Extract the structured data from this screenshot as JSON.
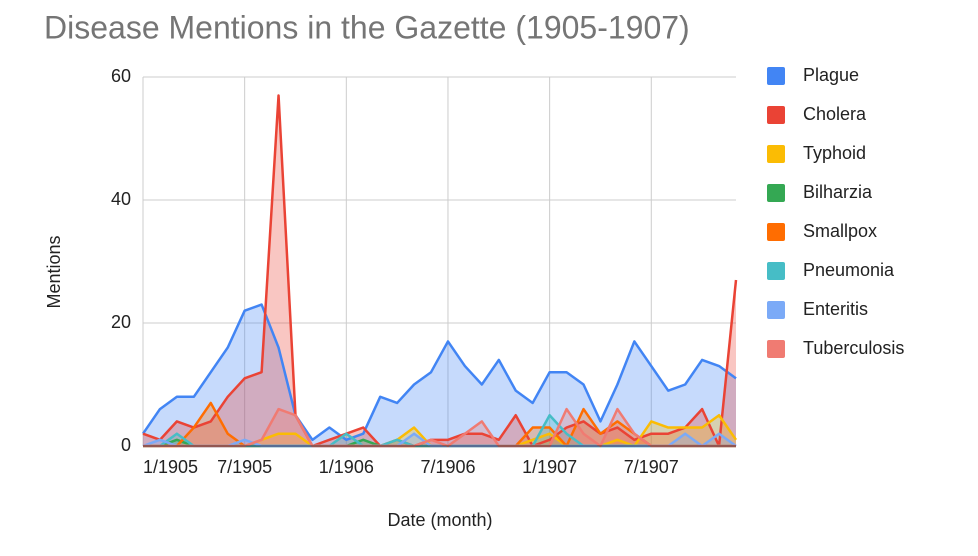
{
  "chart_data": {
    "type": "area",
    "title": "Disease Mentions in the Gazette (1905-1907)",
    "x_label": "Date (month)",
    "y_label": "Mentions",
    "categories": [
      "1/1905",
      null,
      null,
      null,
      null,
      null,
      "7/1905",
      null,
      null,
      null,
      null,
      null,
      "1/1906",
      null,
      null,
      null,
      null,
      null,
      "7/1906",
      null,
      null,
      null,
      null,
      null,
      "1/1907",
      null,
      null,
      null,
      null,
      null,
      "7/1907",
      null,
      null,
      null,
      null,
      null
    ],
    "ylim": [
      0,
      60
    ],
    "yticks": [
      0,
      20,
      40,
      60
    ],
    "grid": true,
    "legend": "right",
    "series": [
      {
        "name": "Plague",
        "color": "#4285f4",
        "values": [
          2,
          6,
          8,
          8,
          12,
          16,
          22,
          23,
          16,
          5,
          1,
          3,
          1,
          2,
          8,
          7,
          10,
          12,
          17,
          13,
          10,
          14,
          9,
          7,
          12,
          12,
          10,
          4,
          10,
          17,
          13,
          9,
          10,
          14,
          13,
          11
        ]
      },
      {
        "name": "Cholera",
        "color": "#ea4335",
        "values": [
          2,
          1,
          4,
          3,
          4,
          8,
          11,
          12,
          57,
          5,
          0,
          1,
          2,
          3,
          0,
          1,
          0,
          1,
          1,
          2,
          2,
          1,
          5,
          0,
          1,
          3,
          4,
          2,
          3,
          1,
          2,
          2,
          3,
          6,
          0,
          27
        ]
      },
      {
        "name": "Typhoid",
        "color": "#fbbc04",
        "values": [
          0,
          0,
          0,
          0,
          0,
          0,
          0,
          1,
          2,
          2,
          0,
          0,
          0,
          0,
          0,
          1,
          3,
          0,
          0,
          0,
          0,
          0,
          0,
          1,
          2,
          0,
          0,
          0,
          1,
          0,
          4,
          3,
          3,
          3,
          5,
          1
        ]
      },
      {
        "name": "Bilharzia",
        "color": "#34a853",
        "values": [
          0,
          0,
          1,
          0,
          0,
          0,
          0,
          0,
          0,
          0,
          0,
          0,
          0,
          1,
          0,
          0,
          0,
          0,
          0,
          0,
          0,
          0,
          0,
          0,
          0,
          0,
          0,
          0,
          0,
          0,
          0,
          0,
          0,
          0,
          0,
          0
        ]
      },
      {
        "name": "Smallpox",
        "color": "#ff6d01",
        "values": [
          0,
          0,
          0,
          3,
          7,
          2,
          0,
          0,
          0,
          0,
          0,
          0,
          0,
          0,
          0,
          0,
          0,
          0,
          0,
          0,
          0,
          0,
          0,
          3,
          3,
          0,
          6,
          2,
          4,
          2,
          0,
          0,
          0,
          0,
          0,
          0
        ]
      },
      {
        "name": "Pneumonia",
        "color": "#46bdc6",
        "values": [
          0,
          0,
          2,
          0,
          0,
          0,
          0,
          0,
          0,
          0,
          0,
          0,
          2,
          0,
          0,
          1,
          0,
          0,
          0,
          0,
          0,
          0,
          0,
          0,
          5,
          2,
          0,
          0,
          0,
          0,
          0,
          0,
          0,
          0,
          0,
          0
        ]
      },
      {
        "name": "Enteritis",
        "color": "#7baaf7",
        "values": [
          0,
          1,
          0,
          0,
          0,
          0,
          1,
          0,
          0,
          0,
          0,
          0,
          0,
          0,
          0,
          0,
          2,
          0,
          0,
          0,
          0,
          0,
          0,
          0,
          0,
          0,
          0,
          0,
          0,
          0,
          0,
          0,
          2,
          0,
          2,
          0
        ]
      },
      {
        "name": "Tuberculosis",
        "color": "#f07b72",
        "values": [
          0,
          0,
          0,
          0,
          0,
          0,
          0,
          1,
          6,
          5,
          0,
          0,
          0,
          0,
          0,
          0,
          0,
          1,
          0,
          2,
          4,
          0,
          0,
          0,
          0,
          6,
          2,
          0,
          6,
          2,
          0,
          0,
          0,
          0,
          0,
          0
        ]
      }
    ]
  }
}
